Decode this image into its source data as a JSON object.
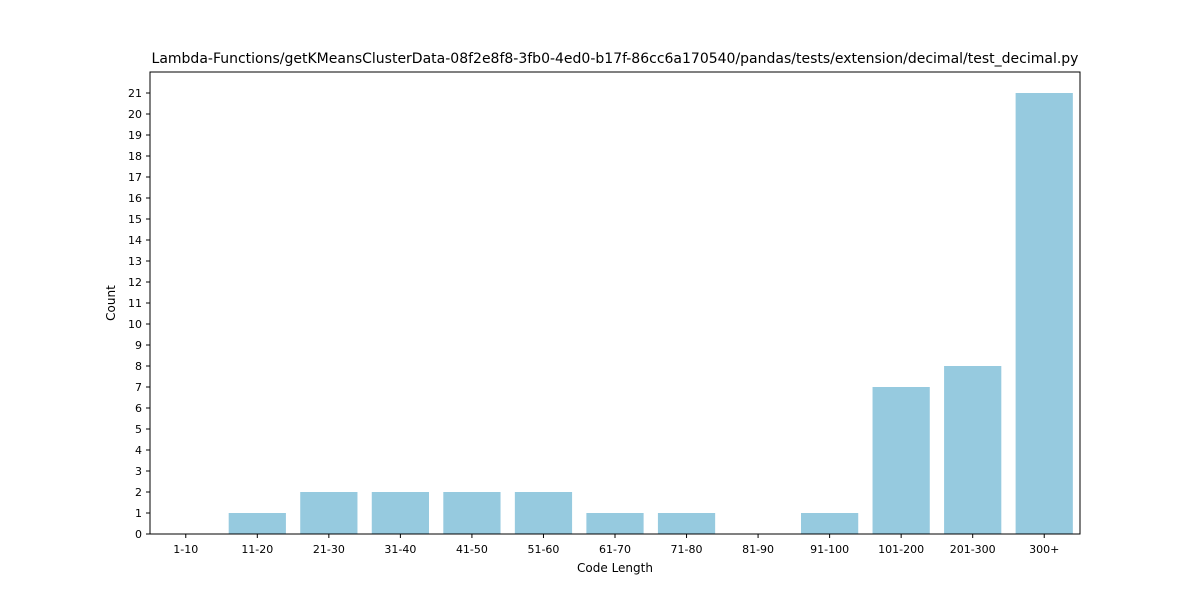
{
  "chart_data": {
    "type": "bar",
    "title": "Lambda-Functions/getKMeansClusterData-08f2e8f8-3fb0-4ed0-b17f-86cc6a170540/pandas/tests/extension/decimal/test_decimal.py",
    "xlabel": "Code Length",
    "ylabel": "Count",
    "categories": [
      "1-10",
      "11-20",
      "21-30",
      "31-40",
      "41-50",
      "51-60",
      "61-70",
      "71-80",
      "81-90",
      "91-100",
      "101-200",
      "201-300",
      "300+"
    ],
    "values": [
      0,
      1,
      2,
      2,
      2,
      2,
      1,
      1,
      0,
      1,
      7,
      8,
      21
    ],
    "ylim": [
      0,
      22
    ],
    "yticks": [
      0,
      1,
      2,
      3,
      4,
      5,
      6,
      7,
      8,
      9,
      10,
      11,
      12,
      13,
      14,
      15,
      16,
      17,
      18,
      19,
      20,
      21
    ],
    "bar_color": "#96cadf",
    "grid": false,
    "legend": "none"
  }
}
